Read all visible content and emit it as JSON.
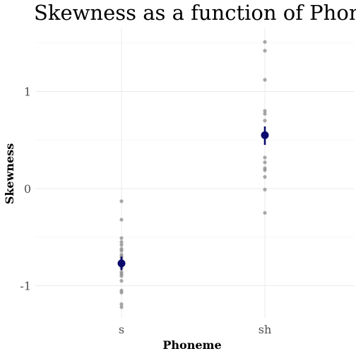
{
  "chart_data": {
    "type": "scatter",
    "title": "Skewness as a function of Phoneme",
    "xlabel": "Phoneme",
    "ylabel": "Skewness",
    "categories": [
      "s",
      "sh"
    ],
    "y_ticks": [
      "-1",
      "0",
      "1"
    ],
    "ylim": [
      -1.4,
      1.65
    ],
    "grid": true,
    "legend": "none",
    "colors": {
      "points": "#8c8c8c",
      "mean": "#0a0a6e"
    },
    "series": [
      {
        "category": "s",
        "points": [
          -0.13,
          -0.32,
          -0.51,
          -0.55,
          -0.58,
          -0.62,
          -0.64,
          -0.68,
          -0.7,
          -0.72,
          -0.75,
          -0.78,
          -0.8,
          -0.82,
          -0.86,
          -0.88,
          -0.9,
          -0.95,
          -1.05,
          -1.07,
          -1.19,
          -1.22
        ],
        "mean": -0.77,
        "ci": [
          -0.84,
          -0.7
        ]
      },
      {
        "category": "sh",
        "points": [
          1.51,
          1.42,
          1.12,
          0.8,
          0.77,
          0.7,
          0.57,
          0.55,
          0.32,
          0.27,
          0.21,
          0.19,
          0.12,
          -0.01,
          -0.25
        ],
        "mean": 0.55,
        "ci": [
          0.45,
          0.64
        ]
      }
    ]
  }
}
